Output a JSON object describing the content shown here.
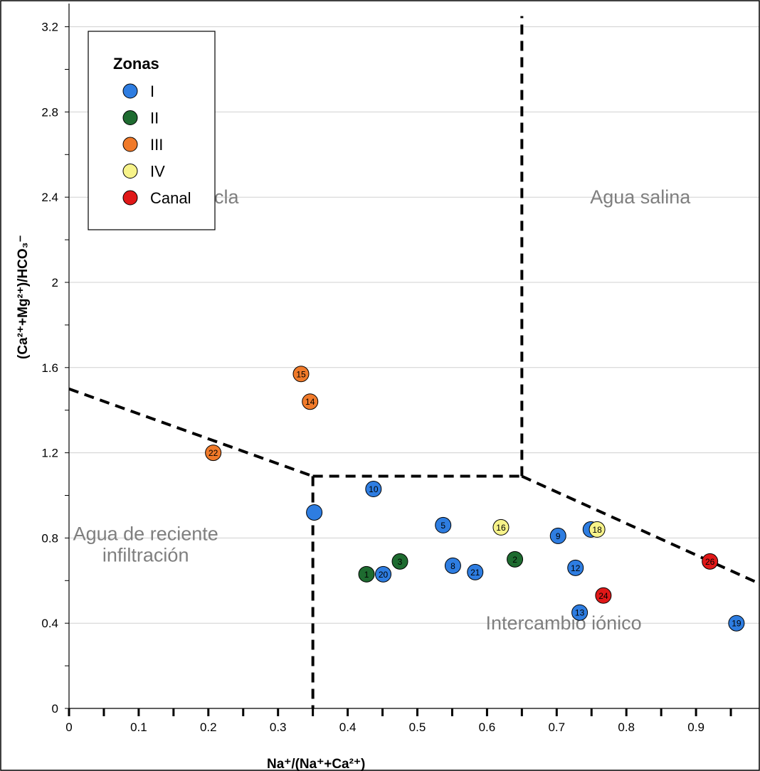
{
  "chart_data": {
    "type": "scatter",
    "xlabel": "Na⁺/(Na⁺+Ca²⁺)",
    "ylabel": "(Ca²⁺+Mg²⁺)/HCO₃⁻",
    "xlim": [
      0,
      1
    ],
    "ylim": [
      0,
      3.3
    ],
    "x_ticks": [
      "0",
      "0.1",
      "0.2",
      "0.3",
      "0.4",
      "0.5",
      "0.6",
      "0.7",
      "0.8",
      "0.9"
    ],
    "y_ticks": [
      "0",
      "0.4",
      "0.8",
      "1.2",
      "1.6",
      "2",
      "2.4",
      "2.8",
      "3.2"
    ],
    "grid": "horizontal",
    "legend": {
      "title": "Zonas",
      "position": "top-left",
      "entries": [
        {
          "label": "I",
          "color": "#2e7de1"
        },
        {
          "label": "II",
          "color": "#1e6b30"
        },
        {
          "label": "III",
          "color": "#f07a2a"
        },
        {
          "label": "IV",
          "color": "#f7f38a"
        },
        {
          "label": "Canal",
          "color": "#e01818"
        }
      ]
    },
    "regions": [
      {
        "label": "Mezcla",
        "x": 0.2,
        "y": 2.4
      },
      {
        "label": "Agua salina",
        "x": 0.82,
        "y": 2.4
      },
      {
        "label": "Agua de reciente",
        "x": 0.11,
        "y": 0.82
      },
      {
        "label": "infiltración",
        "x": 0.11,
        "y": 0.72
      },
      {
        "label": "Intercambio iónico",
        "x": 0.71,
        "y": 0.4
      }
    ],
    "boundaries": [
      [
        [
          0,
          1.5
        ],
        [
          0.35,
          1.09
        ]
      ],
      [
        [
          0.35,
          1.09
        ],
        [
          0.65,
          1.09
        ]
      ],
      [
        [
          0.35,
          1.09
        ],
        [
          0.35,
          0
        ]
      ],
      [
        [
          0.65,
          1.09
        ],
        [
          0.65,
          3.25
        ]
      ],
      [
        [
          0.65,
          1.09
        ],
        [
          0.995,
          0.58
        ]
      ]
    ],
    "series": [
      {
        "name": "I",
        "color": "#2e7de1",
        "points": [
          {
            "x": 0.352,
            "y": 0.92,
            "label": ""
          },
          {
            "x": 0.437,
            "y": 1.03,
            "label": "10"
          },
          {
            "x": 0.537,
            "y": 0.86,
            "label": "5"
          },
          {
            "x": 0.451,
            "y": 0.63,
            "label": "20"
          },
          {
            "x": 0.551,
            "y": 0.67,
            "label": "8"
          },
          {
            "x": 0.583,
            "y": 0.64,
            "label": "21"
          },
          {
            "x": 0.702,
            "y": 0.81,
            "label": "9"
          },
          {
            "x": 0.749,
            "y": 0.84,
            "label": ""
          },
          {
            "x": 0.727,
            "y": 0.66,
            "label": "12"
          },
          {
            "x": 0.733,
            "y": 0.45,
            "label": "13"
          },
          {
            "x": 0.958,
            "y": 0.4,
            "label": "19"
          }
        ]
      },
      {
        "name": "II",
        "color": "#1e6b30",
        "points": [
          {
            "x": 0.427,
            "y": 0.63,
            "label": "1"
          },
          {
            "x": 0.475,
            "y": 0.69,
            "label": "3"
          },
          {
            "x": 0.64,
            "y": 0.7,
            "label": "2"
          }
        ]
      },
      {
        "name": "III",
        "color": "#f07a2a",
        "points": [
          {
            "x": 0.333,
            "y": 1.57,
            "label": "15"
          },
          {
            "x": 0.346,
            "y": 1.44,
            "label": "14"
          },
          {
            "x": 0.207,
            "y": 1.2,
            "label": "22"
          }
        ]
      },
      {
        "name": "IV",
        "color": "#f7f38a",
        "points": [
          {
            "x": 0.62,
            "y": 0.85,
            "label": "16"
          },
          {
            "x": 0.758,
            "y": 0.84,
            "label": "18"
          }
        ]
      },
      {
        "name": "Canal",
        "color": "#e01818",
        "points": [
          {
            "x": 0.92,
            "y": 0.69,
            "label": "26"
          },
          {
            "x": 0.767,
            "y": 0.53,
            "label": "24"
          }
        ]
      }
    ]
  }
}
